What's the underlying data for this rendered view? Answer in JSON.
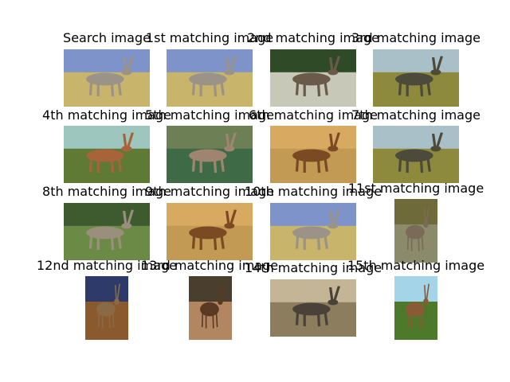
{
  "figure": {
    "panels": [
      {
        "title": "Search image",
        "subject": "oryx-photo"
      },
      {
        "title": "1st matching image",
        "subject": "oryx-photo"
      },
      {
        "title": "2nd matching image",
        "subject": "deer-in-forest-photo"
      },
      {
        "title": "3rd matching image",
        "subject": "kudu-photo"
      },
      {
        "title": "4th matching image",
        "subject": "antelope-herd-photo"
      },
      {
        "title": "5th matching image",
        "subject": "running-deer-photo"
      },
      {
        "title": "6th matching image",
        "subject": "impala-group-photo"
      },
      {
        "title": "7th matching image",
        "subject": "kudu-photo"
      },
      {
        "title": "8th matching image",
        "subject": "kudu-in-bush-photo"
      },
      {
        "title": "9th matching image",
        "subject": "impala-group-photo"
      },
      {
        "title": "10th matching image",
        "subject": "oryx-photo"
      },
      {
        "title": "11st matching image",
        "subject": "deer-photo"
      },
      {
        "title": "12nd matching image",
        "subject": "whitetail-buck-photo"
      },
      {
        "title": "13rd matching image",
        "subject": "elk-photo"
      },
      {
        "title": "14th matching image",
        "subject": "kudu-pair-photo"
      },
      {
        "title": "15th matching image",
        "subject": "caribou-photo"
      }
    ]
  }
}
